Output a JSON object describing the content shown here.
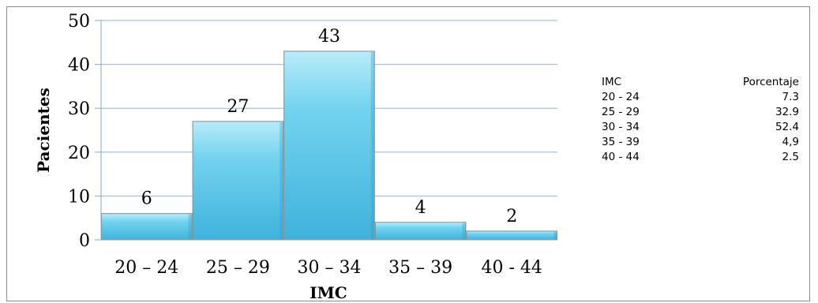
{
  "chart_data": {
    "type": "bar",
    "categories": [
      "20 – 24",
      "25 – 29",
      "30 – 34",
      "35 – 39",
      "40 - 44"
    ],
    "values": [
      6,
      27,
      43,
      4,
      2
    ],
    "xlabel": "IMC",
    "ylabel": "Pacientes",
    "ylim": [
      0,
      50
    ],
    "yticks": [
      "0",
      "10",
      "20",
      "30",
      "40",
      "50"
    ],
    "data_labels": [
      "6",
      "27",
      "43",
      "4",
      "2"
    ],
    "grid": true,
    "bar_color": "#5cc6e8",
    "grid_color": "#8fb4d9"
  },
  "table": {
    "headers": [
      "IMC",
      "Porcentaje"
    ],
    "rows": [
      [
        "20 - 24",
        "7.3"
      ],
      [
        "25 - 29",
        "32.9"
      ],
      [
        "30 - 34",
        "52.4"
      ],
      [
        "35 - 39",
        "4,9"
      ],
      [
        "40 - 44",
        "2.5"
      ]
    ]
  }
}
